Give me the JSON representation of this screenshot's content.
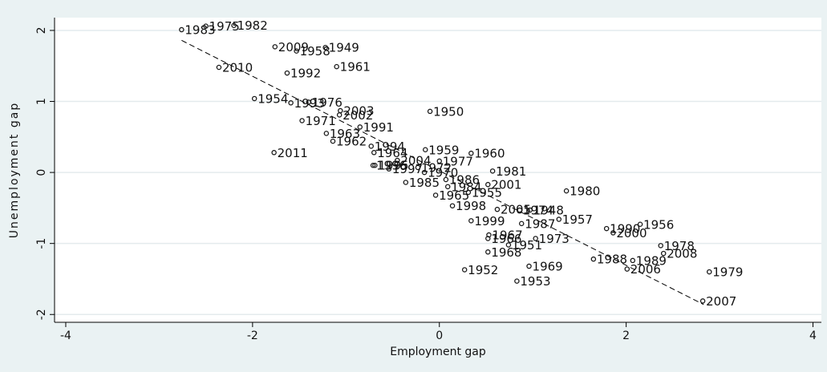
{
  "chart_data": {
    "type": "scatter",
    "x_label": "Employment gap",
    "y_label": "Unemployment gap",
    "labels": [
      "1983",
      "1975",
      "1982",
      "2009",
      "1958",
      "1949",
      "2010",
      "1992",
      "1961",
      "1954",
      "1993",
      "1976",
      "1971",
      "2003",
      "2002",
      "1950",
      "1991",
      "1963",
      "1962",
      "1994",
      "2011",
      "1959",
      "1960",
      "1964",
      "2004",
      "1977",
      "1996",
      "1995",
      "1972",
      "1997",
      "1970",
      "1981",
      "1985",
      "1986",
      "1984",
      "2001",
      "1965",
      "1955",
      "1980",
      "1998",
      "2005",
      "1974",
      "1948",
      "1999",
      "1987",
      "1957",
      "1990",
      "2000",
      "1956",
      "1967",
      "1966",
      "1973",
      "1951",
      "1978",
      "1968",
      "2008",
      "1988",
      "1989",
      "1969",
      "2006",
      "1952",
      "1979",
      "1953",
      "2007"
    ],
    "x": [
      -2.76,
      -2.5,
      -2.2,
      -1.76,
      -1.53,
      -1.22,
      -2.36,
      -1.63,
      -1.1,
      -1.98,
      -1.59,
      -1.4,
      -1.47,
      -1.06,
      -1.07,
      -0.1,
      -0.85,
      -1.21,
      -1.14,
      -0.73,
      -1.77,
      -0.15,
      0.34,
      -0.7,
      -0.45,
      0,
      -0.71,
      -0.69,
      -0.23,
      -0.54,
      -0.16,
      0.57,
      -0.36,
      0.07,
      0.09,
      0.52,
      -0.04,
      0.31,
      1.36,
      0.14,
      0.62,
      0.86,
      0.97,
      0.34,
      0.88,
      1.28,
      1.79,
      1.86,
      2.15,
      0.53,
      0.52,
      1.03,
      0.74,
      2.37,
      0.52,
      2.4,
      1.65,
      2.07,
      0.96,
      2.01,
      0.27,
      2.89,
      0.83,
      2.82
    ],
    "y": [
      2.01,
      2.06,
      2.07,
      1.77,
      1.71,
      1.76,
      1.48,
      1.4,
      1.49,
      1.04,
      0.98,
      0.99,
      0.73,
      0.87,
      0.81,
      0.86,
      0.64,
      0.55,
      0.44,
      0.37,
      0.28,
      0.32,
      0.27,
      0.28,
      0.17,
      0.16,
      0.1,
      0.1,
      0.07,
      0.05,
      0,
      0.02,
      -0.14,
      -0.1,
      -0.2,
      -0.17,
      -0.32,
      -0.28,
      -0.26,
      -0.47,
      -0.52,
      -0.53,
      -0.53,
      -0.68,
      -0.72,
      -0.66,
      -0.79,
      -0.85,
      -0.73,
      -0.88,
      -0.93,
      -0.93,
      -1.02,
      -1.03,
      -1.12,
      -1.14,
      -1.22,
      -1.24,
      -1.32,
      -1.36,
      -1.37,
      -1.4,
      -1.53,
      -1.81
    ],
    "trend": {
      "x": [
        -2.76,
        2.83
      ],
      "y": [
        1.86,
        -1.86
      ]
    },
    "color": "#1a1a1a",
    "xlim": [
      -4.12,
      4.09
    ],
    "ylim": [
      -2.11,
      2.18
    ],
    "xticks": [
      -4,
      -2,
      0,
      2,
      4
    ],
    "yticks": [
      -2,
      -1,
      0,
      1,
      2
    ],
    "grid": true
  }
}
